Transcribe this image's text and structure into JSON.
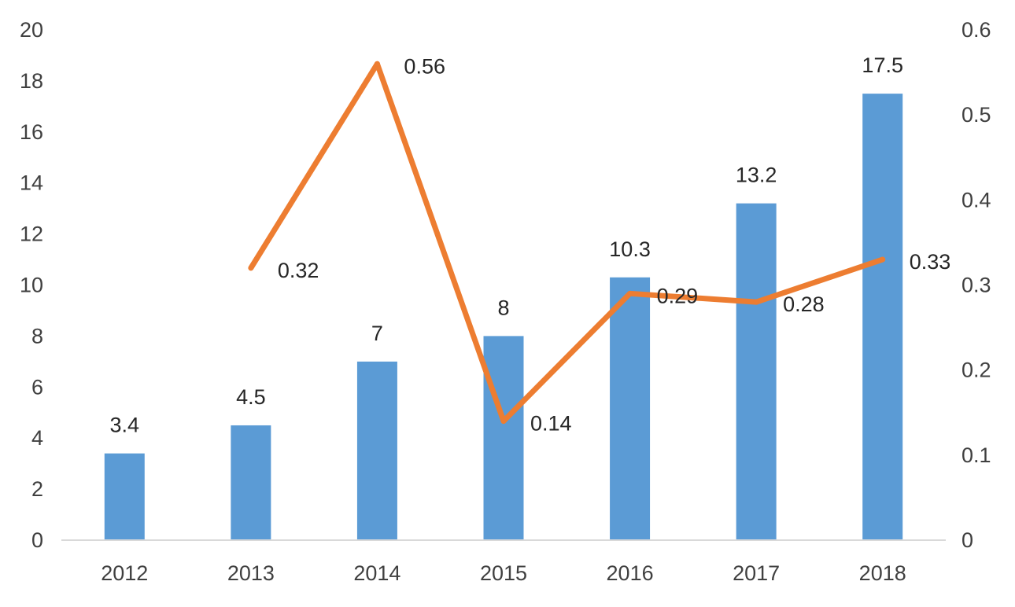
{
  "chart_data": {
    "type": "bar",
    "title": "",
    "xlabel": "",
    "ylabel": "",
    "categories": [
      "2012",
      "2013",
      "2014",
      "2015",
      "2016",
      "2017",
      "2018"
    ],
    "series": [
      {
        "type": "bar",
        "axis": "left",
        "color": "#5B9BD5",
        "values": [
          3.4,
          4.5,
          7,
          8,
          10.3,
          13.2,
          17.5
        ],
        "labels": [
          "3.4",
          "4.5",
          "7",
          "8",
          "10.3",
          "13.2",
          "17.5"
        ]
      },
      {
        "type": "line",
        "axis": "right",
        "color": "#ED7D31",
        "values": [
          null,
          0.32,
          0.56,
          0.14,
          0.29,
          0.28,
          0.33
        ],
        "labels": [
          "",
          "0.32",
          "0.56",
          "0.14",
          "0.29",
          "0.28",
          "0.33"
        ]
      }
    ],
    "y_left": {
      "min": 0,
      "max": 20,
      "ticks": [
        "0",
        "2",
        "4",
        "6",
        "8",
        "10",
        "12",
        "14",
        "16",
        "18",
        "20"
      ]
    },
    "y_right": {
      "min": 0,
      "max": 0.6,
      "ticks": [
        "0",
        "0.1",
        "0.2",
        "0.3",
        "0.4",
        "0.5",
        "0.6"
      ]
    },
    "grid": false,
    "legend": "none",
    "axis_line_color": "#D9D9D9"
  }
}
